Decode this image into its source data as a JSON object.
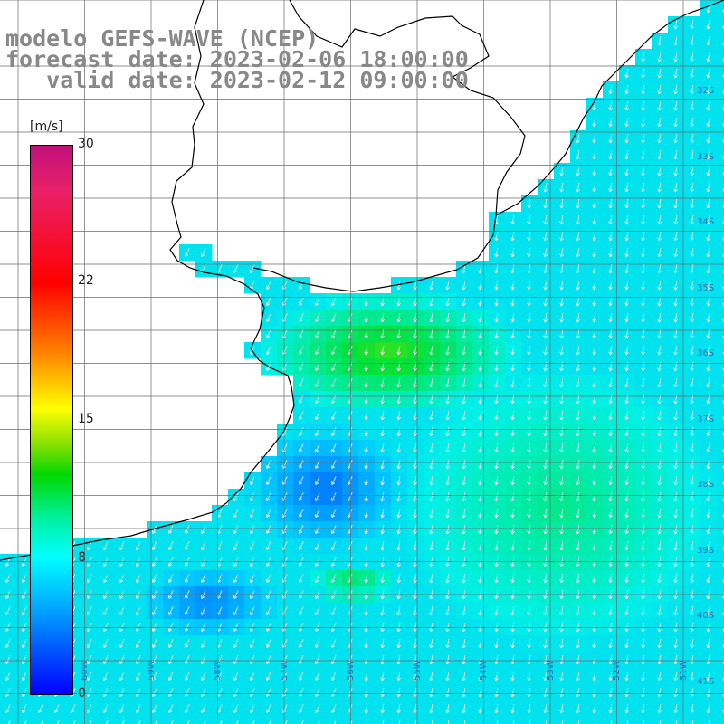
{
  "title": {
    "line1": "modelo GEFS-WAVE (NCEP)",
    "line2": "forecast date: 2023-02-06 18:00:00",
    "line3": "   valid date: 2023-02-12 09:00:00"
  },
  "colorbar": {
    "unit": "[m/s]",
    "ticks": [
      "30",
      "22",
      "15",
      "8",
      "0"
    ]
  },
  "grid_labels": {
    "lat": [
      "32S",
      "33S",
      "34S",
      "35S",
      "36S",
      "37S",
      "38S",
      "39S",
      "40S",
      "41S"
    ],
    "lon": [
      "60W",
      "59W",
      "58W",
      "57W",
      "56W",
      "55W",
      "54W",
      "53W",
      "52W",
      "51W"
    ]
  },
  "colors": {
    "land": "#ffffff",
    "grid": "#6a6a6a",
    "coast": "#000000",
    "arrows": "#ffffff"
  }
}
